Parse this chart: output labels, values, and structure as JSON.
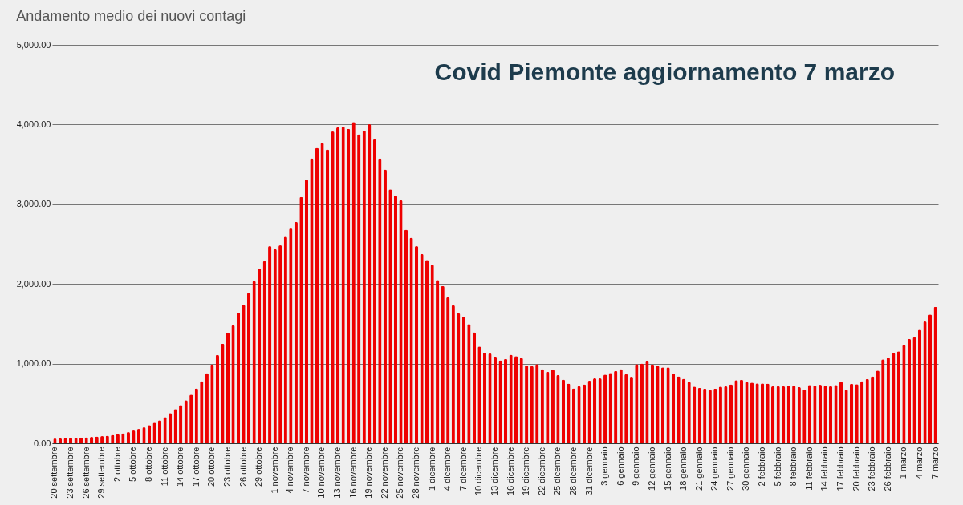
{
  "chart_data": {
    "type": "bar",
    "title": "Andamento medio dei nuovi contagi",
    "categories": [
      "20 settembre",
      null,
      null,
      "23 settembre",
      null,
      null,
      "26 settembre",
      null,
      null,
      "29 settembre",
      null,
      null,
      "2 ottobre",
      null,
      null,
      "5 ottobre",
      null,
      null,
      "8 ottobre",
      null,
      null,
      "11 ottobre",
      null,
      null,
      "14 ottobre",
      null,
      null,
      "17 ottobre",
      null,
      null,
      "20 ottobre",
      null,
      null,
      "23 ottobre",
      null,
      null,
      "26 ottobre",
      null,
      null,
      "29 ottobre",
      null,
      null,
      "1 novembre",
      null,
      null,
      "4 novembre",
      null,
      null,
      "7 novembre",
      null,
      null,
      "10 novembre",
      null,
      null,
      "13 novembre",
      null,
      null,
      "16 novembre",
      null,
      null,
      "19 novembre",
      null,
      null,
      "22 novembre",
      null,
      null,
      "25 novembre",
      null,
      null,
      "28 novembre",
      null,
      null,
      "1 dicembre",
      null,
      null,
      "4 dicembre",
      null,
      null,
      "7 dicembre",
      null,
      null,
      "10 dicembre",
      null,
      null,
      "13 dicembre",
      null,
      null,
      "16 dicembre",
      null,
      null,
      "19 dicembre",
      null,
      null,
      "22 dicembre",
      null,
      null,
      "25 dicembre",
      null,
      null,
      "28 dicembre",
      null,
      null,
      "31 dicembre",
      null,
      null,
      "3 gennaio",
      null,
      null,
      "6 gennaio",
      null,
      null,
      "9 gennaio",
      null,
      null,
      "12 gennaio",
      null,
      null,
      "15 gennaio",
      null,
      null,
      "18 gennaio",
      null,
      null,
      "21 gennaio",
      null,
      null,
      "24 gennaio",
      null,
      null,
      "27 gennaio",
      null,
      null,
      "30 gennaio",
      null,
      null,
      "2 febbraio",
      null,
      null,
      "5 febbraio",
      null,
      null,
      "8 febbraio",
      null,
      null,
      "11 febbraio",
      null,
      null,
      "14 febbraio",
      null,
      null,
      "17 febbraio",
      null,
      null,
      "20 febbraio",
      null,
      null,
      "23 febbraio",
      null,
      null,
      "26 febbraio",
      null,
      null,
      "1 marzo",
      null,
      null,
      "4 marzo",
      null,
      null,
      "7 marzo"
    ],
    "values": [
      60,
      62,
      65,
      68,
      70,
      72,
      75,
      80,
      85,
      90,
      95,
      105,
      115,
      125,
      140,
      160,
      180,
      200,
      230,
      260,
      290,
      330,
      380,
      430,
      480,
      540,
      610,
      690,
      780,
      880,
      990,
      1110,
      1250,
      1390,
      1481,
      1641,
      1738,
      1891,
      2036,
      2192,
      2286,
      2474,
      2436,
      2484,
      2593,
      2695,
      2779,
      3090,
      3311,
      3577,
      3708,
      3769,
      3686,
      3913,
      3965,
      3974,
      3945,
      4032,
      3878,
      3926,
      4003,
      3814,
      3577,
      3436,
      3186,
      3109,
      3051,
      2680,
      2580,
      2474,
      2378,
      2301,
      2243,
      2051,
      1974,
      1833,
      1734,
      1632,
      1590,
      1497,
      1394,
      1215,
      1138,
      1128,
      1090,
      1042,
      1058,
      1112,
      1093,
      1071,
      978,
      968,
      993,
      930,
      897,
      926,
      856,
      801,
      750,
      689,
      718,
      740,
      785,
      814,
      814,
      862,
      882,
      907,
      930,
      868,
      834,
      993,
      1000,
      1038,
      990,
      974,
      952,
      952,
      878,
      839,
      811,
      772,
      712,
      695,
      686,
      673,
      686,
      712,
      715,
      740,
      792,
      798,
      772,
      763,
      753,
      753,
      750,
      715,
      718,
      715,
      724,
      724,
      705,
      676,
      731,
      728,
      734,
      721,
      718,
      731,
      772,
      673,
      747,
      743,
      779,
      808,
      839,
      913,
      1055,
      1077,
      1135,
      1154,
      1234,
      1311,
      1330,
      1426,
      1529,
      1618,
      1714
    ],
    "color": "#ee0000",
    "ylim": [
      0,
      5000
    ],
    "yticks": [
      {
        "value": 0,
        "label": "0.00"
      },
      {
        "value": 1000,
        "label": "1,000.00"
      },
      {
        "value": 2000,
        "label": "2,000.00"
      },
      {
        "value": 3000,
        "label": "3,000.00"
      },
      {
        "value": 4000,
        "label": "4,000.00"
      },
      {
        "value": 5000,
        "label": "5,000.00"
      }
    ],
    "grid": "y",
    "annotations": [
      "Covid Piemonte aggiornamento 7 marzo"
    ]
  }
}
